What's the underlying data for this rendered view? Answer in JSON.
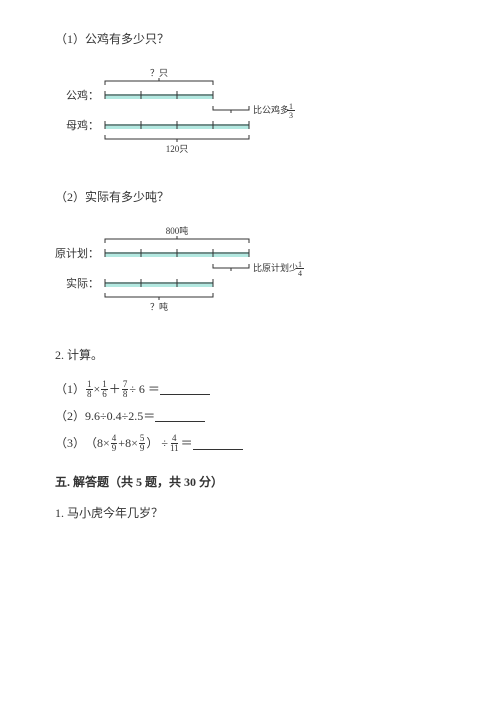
{
  "q1": {
    "prompt": "（1）公鸡有多少只？",
    "diagram": {
      "top_label": "？只",
      "row1_label": "公鸡：",
      "row2_label": "母鸡：",
      "bottom_label": "120只",
      "middle_annotation_prefix": "比公鸡多",
      "middle_frac_num": "1",
      "middle_frac_den": "3",
      "bar_color": "#7FD9CC",
      "line_color": "#333333",
      "seg_count_row1": 3,
      "seg_count_row2": 4
    }
  },
  "q2": {
    "prompt": "（2）实际有多少吨？",
    "diagram": {
      "top_label": "800吨",
      "row1_label": "原计划：",
      "row2_label": "实际：",
      "bottom_label": "？吨",
      "middle_annotation_prefix": "比原计划少",
      "middle_frac_num": "1",
      "middle_frac_den": "4",
      "bar_color": "#7FD9CC",
      "line_color": "#333333",
      "seg_count_row1": 4,
      "seg_count_row2": 3
    }
  },
  "calc": {
    "heading": "2. 计算。",
    "rows": [
      {
        "pref": "（1）",
        "parts": [
          {
            "type": "frac",
            "num": "1",
            "den": "8"
          },
          {
            "type": "text",
            "val": " × "
          },
          {
            "type": "frac",
            "num": "1",
            "den": "6"
          },
          {
            "type": "text",
            "val": " ＋ "
          },
          {
            "type": "frac",
            "num": "7",
            "den": "8"
          },
          {
            "type": "text",
            "val": " ÷ 6 ＝"
          }
        ]
      },
      {
        "pref": "（2）",
        "parts": [
          {
            "type": "text",
            "val": "9.6÷0.4÷2.5＝"
          }
        ]
      },
      {
        "pref": "（3）",
        "parts": [
          {
            "type": "text",
            "val": "（8×"
          },
          {
            "type": "frac",
            "num": "4",
            "den": "9"
          },
          {
            "type": "text",
            "val": " +8×"
          },
          {
            "type": "frac",
            "num": "5",
            "den": "9"
          },
          {
            "type": "text",
            "val": " ） ÷"
          },
          {
            "type": "frac",
            "num": "4",
            "den": "11"
          },
          {
            "type": "text",
            "val": " ＝"
          }
        ]
      }
    ]
  },
  "section5": {
    "heading": "五. 解答题（共 5 题，共 30 分）",
    "q1": "1. 马小虎今年几岁？"
  }
}
